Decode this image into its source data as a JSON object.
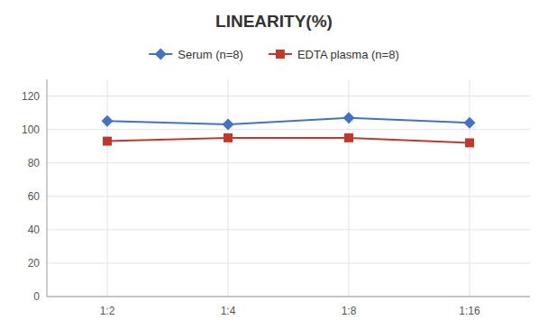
{
  "chart_data": {
    "type": "line",
    "title": "LINEARITY(%)",
    "categories": [
      "1:2",
      "1:4",
      "1:8",
      "1:16"
    ],
    "series": [
      {
        "name": "Serum (n=8)",
        "color": "#4472C4",
        "marker": "diamond",
        "values": [
          105,
          103,
          107,
          104
        ]
      },
      {
        "name": "EDTA plasma (n=8)",
        "color": "#C0392B",
        "marker": "square",
        "values": [
          93,
          95,
          95,
          92
        ]
      }
    ],
    "ylim": [
      0,
      130
    ],
    "yticks": [
      0,
      20,
      40,
      60,
      80,
      100,
      120
    ],
    "grid": true,
    "legend": "top"
  }
}
